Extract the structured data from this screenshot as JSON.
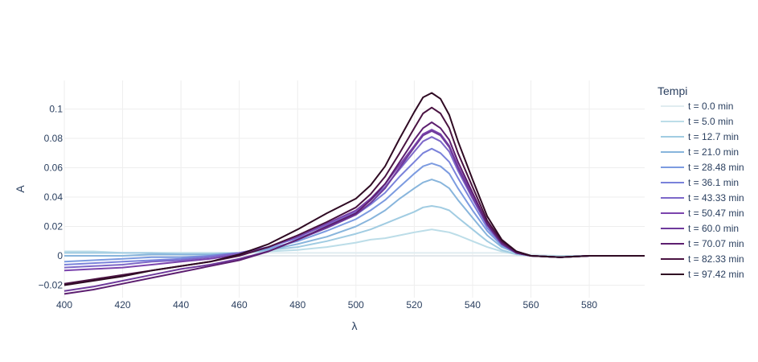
{
  "chart_data": {
    "type": "line",
    "title": "",
    "xlabel": "λ",
    "ylabel": "A",
    "xlim": [
      400,
      599
    ],
    "ylim": [
      -0.0285,
      0.1195
    ],
    "x_ticks": [
      400,
      420,
      440,
      460,
      480,
      500,
      520,
      540,
      560,
      580
    ],
    "x_tick_labels": [
      "400",
      "420",
      "440",
      "460",
      "480",
      "500",
      "520",
      "540",
      "560",
      "580"
    ],
    "y_ticks": [
      -0.02,
      0,
      0.02,
      0.04,
      0.06,
      0.08,
      0.1
    ],
    "y_tick_labels": [
      "−0.02",
      "0",
      "0.02",
      "0.04",
      "0.06",
      "0.08",
      "0.1"
    ],
    "grid": true,
    "legend_title": "Tempi",
    "legend_position": "right",
    "x": [
      400,
      410,
      420,
      430,
      440,
      450,
      460,
      470,
      480,
      490,
      500,
      505,
      510,
      515,
      520,
      523,
      526,
      529,
      532,
      535,
      540,
      545,
      550,
      555,
      560,
      570,
      580,
      590,
      599
    ],
    "series": [
      {
        "name": "t = 0.0 min",
        "color": "#e0ecf0",
        "values": [
          0.002,
          0.002,
          0.002,
          0.002,
          0.002,
          0.002,
          0.002,
          0.002,
          0.002,
          0.002,
          0.002,
          0.002,
          0.002,
          0.002,
          0.002,
          0.002,
          0.002,
          0.002,
          0.002,
          0.002,
          0.002,
          0.002,
          0.002,
          0.002,
          0.001,
          0.0,
          0.0,
          0.0,
          0.0
        ]
      },
      {
        "name": "t = 5.0 min",
        "color": "#bcdde8",
        "values": [
          0.003,
          0.003,
          0.002,
          0.002,
          0.002,
          0.002,
          0.002,
          0.003,
          0.004,
          0.006,
          0.009,
          0.011,
          0.012,
          0.014,
          0.016,
          0.017,
          0.018,
          0.017,
          0.016,
          0.014,
          0.01,
          0.006,
          0.003,
          0.001,
          0.0,
          0.0,
          0.0,
          0.0,
          0.0
        ]
      },
      {
        "name": "t = 12.7 min",
        "color": "#a1cce2",
        "values": [
          0.002,
          0.002,
          0.002,
          0.002,
          0.001,
          0.001,
          0.002,
          0.004,
          0.006,
          0.01,
          0.015,
          0.018,
          0.022,
          0.026,
          0.03,
          0.033,
          0.034,
          0.033,
          0.031,
          0.026,
          0.018,
          0.01,
          0.004,
          0.001,
          0.0,
          -0.001,
          0.0,
          0.0,
          0.0
        ]
      },
      {
        "name": "t = 21.0 min",
        "color": "#88b5dc",
        "values": [
          0.0,
          0.0,
          0.0,
          0.001,
          0.001,
          0.001,
          0.002,
          0.004,
          0.008,
          0.013,
          0.02,
          0.025,
          0.031,
          0.039,
          0.046,
          0.05,
          0.052,
          0.05,
          0.046,
          0.038,
          0.026,
          0.014,
          0.006,
          0.002,
          0.0,
          -0.001,
          0.0,
          0.0,
          0.0
        ]
      },
      {
        "name": "t = 28.48 min",
        "color": "#7c9be0",
        "values": [
          -0.004,
          -0.003,
          -0.002,
          -0.001,
          -0.001,
          0.0,
          0.002,
          0.005,
          0.01,
          0.017,
          0.025,
          0.031,
          0.038,
          0.047,
          0.056,
          0.061,
          0.063,
          0.061,
          0.056,
          0.046,
          0.031,
          0.017,
          0.007,
          0.002,
          0.0,
          -0.001,
          0.0,
          0.0,
          0.0
        ]
      },
      {
        "name": "t = 36.1 min",
        "color": "#7a82da",
        "values": [
          -0.006,
          -0.005,
          -0.004,
          -0.003,
          -0.002,
          0.0,
          0.002,
          0.006,
          0.012,
          0.019,
          0.028,
          0.035,
          0.043,
          0.054,
          0.064,
          0.07,
          0.073,
          0.07,
          0.064,
          0.053,
          0.036,
          0.019,
          0.008,
          0.002,
          0.0,
          -0.001,
          0.0,
          0.0,
          0.0
        ]
      },
      {
        "name": "t = 43.33 min",
        "color": "#7d68c9",
        "values": [
          -0.008,
          -0.007,
          -0.006,
          -0.004,
          -0.003,
          -0.001,
          0.002,
          0.006,
          0.013,
          0.021,
          0.03,
          0.038,
          0.047,
          0.059,
          0.071,
          0.078,
          0.081,
          0.078,
          0.071,
          0.058,
          0.039,
          0.021,
          0.009,
          0.002,
          0.0,
          -0.001,
          0.0,
          0.0,
          0.0
        ]
      },
      {
        "name": "t = 50.47 min",
        "color": "#7b44ad",
        "values": [
          -0.01,
          -0.009,
          -0.008,
          -0.006,
          -0.004,
          -0.002,
          0.001,
          0.006,
          0.013,
          0.022,
          0.031,
          0.039,
          0.049,
          0.062,
          0.075,
          0.083,
          0.086,
          0.083,
          0.075,
          0.061,
          0.041,
          0.022,
          0.009,
          0.002,
          0.0,
          -0.001,
          0.0,
          0.0,
          0.0
        ]
      },
      {
        "name": "t = 60.0 min",
        "color": "#6f3a9c",
        "values": [
          -0.024,
          -0.021,
          -0.017,
          -0.013,
          -0.009,
          -0.006,
          -0.002,
          0.003,
          0.011,
          0.019,
          0.028,
          0.036,
          0.046,
          0.06,
          0.074,
          0.082,
          0.085,
          0.082,
          0.074,
          0.06,
          0.04,
          0.021,
          0.008,
          0.002,
          0.0,
          -0.001,
          0.0,
          0.0,
          0.0
        ]
      },
      {
        "name": "t = 70.07 min",
        "color": "#5d1f70",
        "values": [
          -0.026,
          -0.023,
          -0.019,
          -0.015,
          -0.011,
          -0.007,
          -0.003,
          0.003,
          0.011,
          0.02,
          0.029,
          0.038,
          0.049,
          0.064,
          0.079,
          0.087,
          0.091,
          0.087,
          0.079,
          0.064,
          0.043,
          0.022,
          0.009,
          0.002,
          0.0,
          -0.001,
          0.0,
          0.0,
          0.0
        ]
      },
      {
        "name": "t = 82.33 min",
        "color": "#4a1342",
        "values": [
          -0.019,
          -0.016,
          -0.013,
          -0.01,
          -0.007,
          -0.004,
          0.0,
          0.006,
          0.014,
          0.023,
          0.033,
          0.042,
          0.054,
          0.07,
          0.087,
          0.097,
          0.101,
          0.097,
          0.087,
          0.07,
          0.047,
          0.024,
          0.01,
          0.003,
          0.0,
          -0.001,
          0.0,
          0.0,
          0.0
        ]
      },
      {
        "name": "t = 97.42 min",
        "color": "#2f0a23",
        "values": [
          -0.02,
          -0.017,
          -0.014,
          -0.01,
          -0.007,
          -0.004,
          0.001,
          0.008,
          0.018,
          0.029,
          0.039,
          0.048,
          0.061,
          0.08,
          0.098,
          0.108,
          0.111,
          0.107,
          0.096,
          0.078,
          0.052,
          0.027,
          0.011,
          0.003,
          0.0,
          -0.001,
          0.0,
          0.0,
          0.0
        ]
      }
    ]
  }
}
